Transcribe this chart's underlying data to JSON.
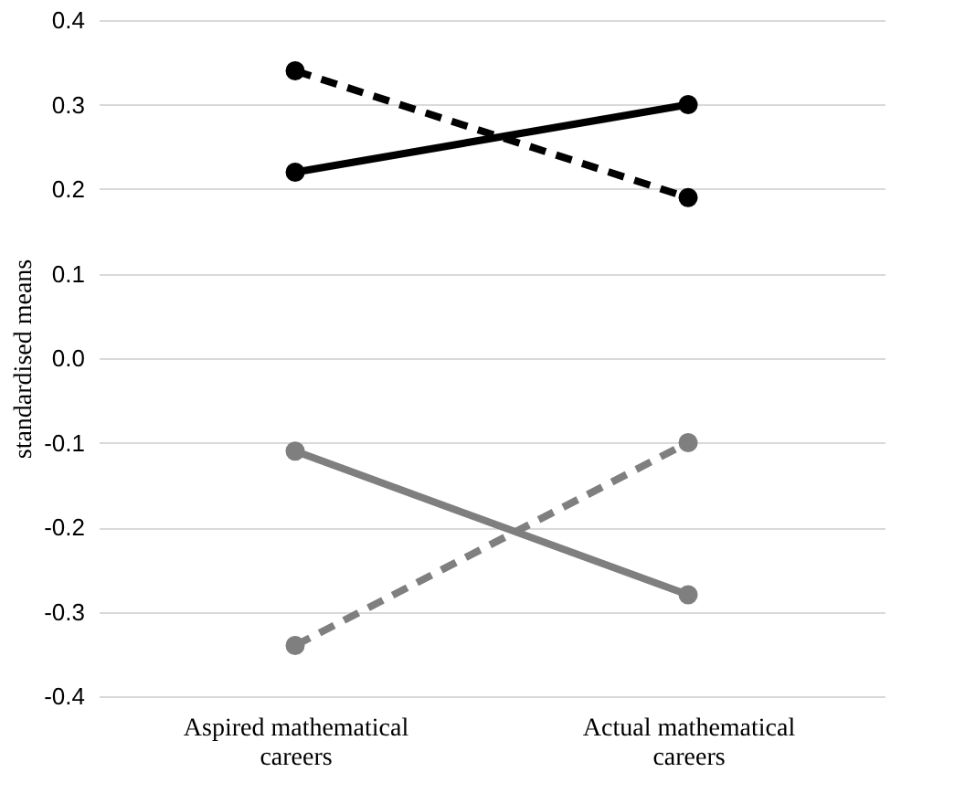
{
  "chart_data": {
    "type": "line",
    "ylabel": "standardised means",
    "categories": [
      "Aspired mathematical careers",
      "Actual mathematical careers"
    ],
    "series": [
      {
        "color": "#000000",
        "values": [
          0.22,
          0.3
        ],
        "line_style": "solid"
      },
      {
        "color": "#000000",
        "values": [
          0.34,
          0.19
        ],
        "line_style": "dashed"
      },
      {
        "color": "#7f7f7f",
        "values": [
          -0.11,
          -0.28
        ],
        "line_style": "solid"
      },
      {
        "color": "#7f7f7f",
        "values": [
          -0.34,
          -0.1
        ],
        "line_style": "dashed"
      }
    ],
    "ylim": [
      -0.4,
      0.4
    ],
    "yticks": [
      0.4,
      0.3,
      0.2,
      0.1,
      {
        "value": 0,
        "label": "0.0"
      },
      -0.1,
      -0.2,
      -0.3,
      -0.4
    ],
    "grid": "y",
    "marker": "circle"
  }
}
